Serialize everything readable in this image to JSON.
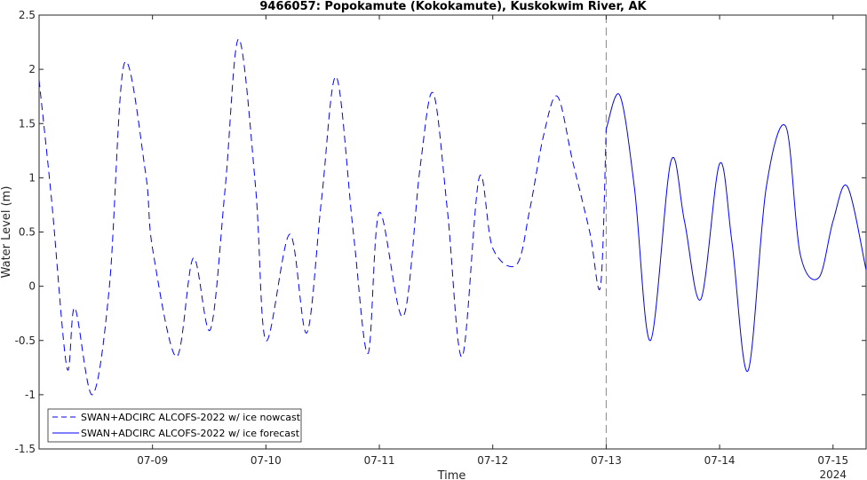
{
  "chart_data": {
    "type": "line",
    "title": "9466057: Popokamute (Kokokamute), Kuskokwim River, AK",
    "xlabel": "Time",
    "ylabel": "Water Level (m)",
    "year_label": "2024",
    "ylim": [
      -1.5,
      2.5
    ],
    "yticks": [
      -1.5,
      -1,
      -0.5,
      0,
      0.5,
      1,
      1.5,
      2,
      2.5
    ],
    "ytick_labels": [
      "-1.5",
      "-1",
      "-0.5",
      "0",
      "0.5",
      "1",
      "1.5",
      "2",
      "2.5"
    ],
    "xlim": [
      "2024-07-08 00:00",
      "2024-07-15 07:00"
    ],
    "xticks": [
      "2024-07-09",
      "2024-07-10",
      "2024-07-11",
      "2024-07-12",
      "2024-07-13",
      "2024-07-14",
      "2024-07-15"
    ],
    "xtick_labels": [
      "07-09",
      "07-10",
      "07-11",
      "07-12",
      "07-13",
      "07-14",
      "07-15"
    ],
    "nowcast_end": "2024-07-13 00:00",
    "grid": false,
    "legend_position": "bottom-left",
    "series": [
      {
        "name": "SWAN+ADCIRC ALCOFS-2022 w/ ice nowcast",
        "color": "#0000ff",
        "style": "dashed",
        "x": [
          "2024-07-08 00:00",
          "2024-07-08 02:38",
          "2024-07-08 05:53",
          "2024-07-08 07:34",
          "2024-07-08 11:17",
          "2024-07-08 14:53",
          "2024-07-08 18:00",
          "2024-07-08 22:31",
          "2024-07-09 00:00",
          "2024-07-09 05:02",
          "2024-07-09 08:38",
          "2024-07-09 12:14",
          "2024-07-09 15:22",
          "2024-07-09 18:14",
          "2024-07-09 21:50",
          "2024-07-10 00:00",
          "2024-07-10 05:02",
          "2024-07-10 08:38",
          "2024-07-10 11:46",
          "2024-07-10 14:53",
          "2024-07-10 18:29",
          "2024-07-10 21:36",
          "2024-07-11 00:00",
          "2024-07-11 05:02",
          "2024-07-11 08:38",
          "2024-07-11 11:24",
          "2024-07-11 14:24",
          "2024-07-11 17:31",
          "2024-07-11 21:07",
          "2024-07-12 00:00",
          "2024-07-12 05:02",
          "2024-07-12 07:48",
          "2024-07-12 10:48",
          "2024-07-12 13:41",
          "2024-07-12 16:55",
          "2024-07-12 20:31",
          "2024-07-12 22:48",
          "2024-07-13 00:00"
        ],
        "y": [
          1.9,
          0.8,
          -0.75,
          -0.2,
          -1.0,
          0.0,
          2.05,
          1.05,
          0.35,
          -0.65,
          0.26,
          -0.4,
          0.9,
          2.28,
          0.9,
          -0.5,
          0.48,
          -0.43,
          0.8,
          1.93,
          0.5,
          -0.62,
          0.68,
          -0.28,
          1.1,
          1.78,
          0.7,
          -0.65,
          1.0,
          0.35,
          0.2,
          0.7,
          1.4,
          1.75,
          1.15,
          0.5,
          0.0,
          1.45
        ]
      },
      {
        "name": "SWAN+ADCIRC ALCOFS-2022 w/ ice forecast",
        "color": "#0000ff",
        "style": "solid",
        "x": [
          "2024-07-13 00:00",
          "2024-07-13 02:53",
          "2024-07-13 06:00",
          "2024-07-13 09:22",
          "2024-07-13 13:41",
          "2024-07-13 16:34",
          "2024-07-13 20:02",
          "2024-07-14 00:00",
          "2024-07-14 02:38",
          "2024-07-14 06:00",
          "2024-07-14 09:50",
          "2024-07-14 14:02",
          "2024-07-14 17:02",
          "2024-07-14 21:00",
          "2024-07-15 00:00",
          "2024-07-15 03:02",
          "2024-07-15 07:00"
        ],
        "y": [
          1.45,
          1.76,
          0.9,
          -0.5,
          1.15,
          0.6,
          -0.12,
          1.13,
          0.4,
          -0.78,
          0.9,
          1.47,
          0.3,
          0.08,
          0.6,
          0.92,
          0.15
        ]
      }
    ]
  }
}
